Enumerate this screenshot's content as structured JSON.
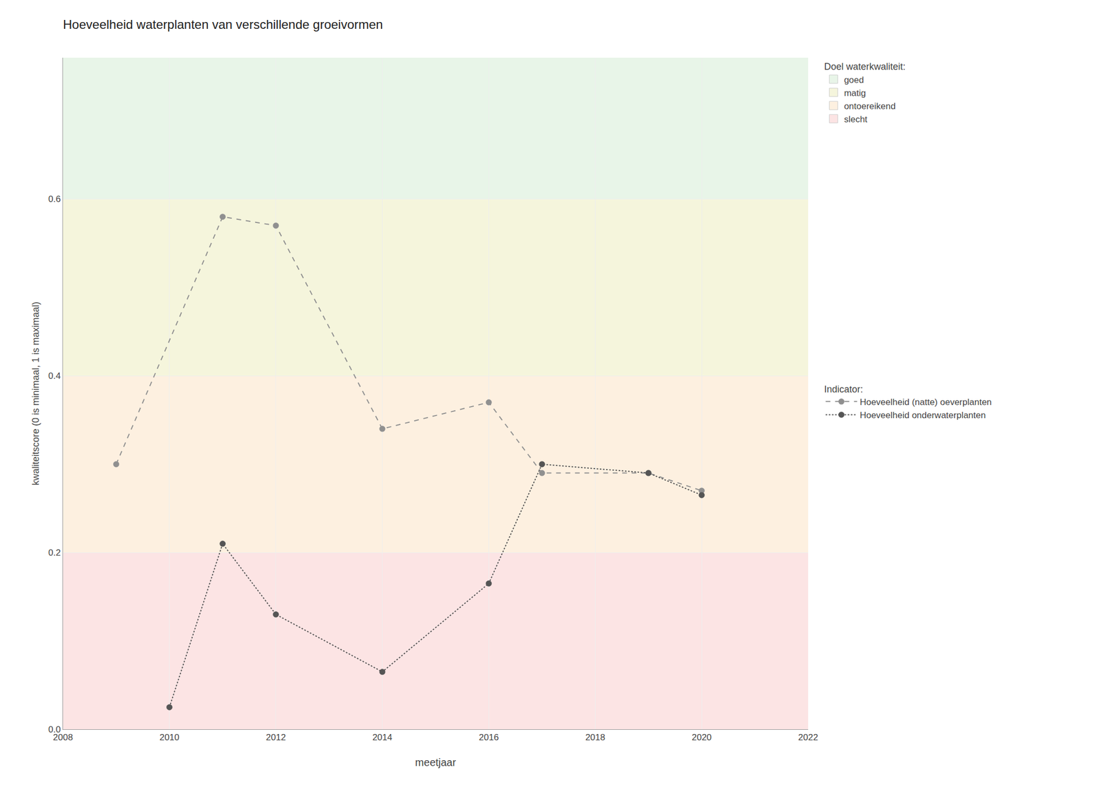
{
  "chart_data": {
    "type": "line",
    "title": "Hoeveelheid waterplanten van verschillende groeivormen",
    "x_label": "meetjaar",
    "y_label": "kwaliteitscore (0 is minimaal, 1 is maximaal)",
    "xlim": [
      2008,
      2022
    ],
    "ylim": [
      0,
      0.76
    ],
    "xticks": [
      2008,
      2010,
      2012,
      2014,
      2016,
      2018,
      2020,
      2022
    ],
    "yticks": [
      {
        "value": 0,
        "label": "0.0"
      },
      0.2,
      0.4,
      0.6
    ],
    "grid": true,
    "zones": {
      "title": "Doel waterkwaliteit:",
      "items": [
        {
          "name": "goed",
          "color": "#e8f5e8",
          "range": [
            0.6,
            0.76
          ]
        },
        {
          "name": "matig",
          "color": "#f5f5dc",
          "range": [
            0.4,
            0.6
          ]
        },
        {
          "name": "ontoereikend",
          "color": "#fdf0e0",
          "range": [
            0.2,
            0.4
          ]
        },
        {
          "name": "slecht",
          "color": "#fce4e4",
          "range": [
            0.0,
            0.2
          ]
        }
      ]
    },
    "legend_title": "Indicator:",
    "series": [
      {
        "name": "Hoeveelheid (natte) oeverplanten",
        "color": "#909090",
        "line_style": "dashed",
        "marker": "circle",
        "x": [
          2009,
          2011,
          2012,
          2014,
          2016,
          2017,
          2019,
          2020
        ],
        "values": [
          0.3,
          0.58,
          0.57,
          0.34,
          0.37,
          0.29,
          0.29,
          0.27
        ]
      },
      {
        "name": "Hoeveelheid onderwaterplanten",
        "color": "#555555",
        "line_style": "dotted",
        "marker": "circle",
        "x": [
          2010,
          2011,
          2012,
          2014,
          2016,
          2017,
          2019,
          2020
        ],
        "values": [
          0.025,
          0.21,
          0.13,
          0.065,
          0.165,
          0.3,
          0.29,
          0.265
        ]
      }
    ]
  }
}
